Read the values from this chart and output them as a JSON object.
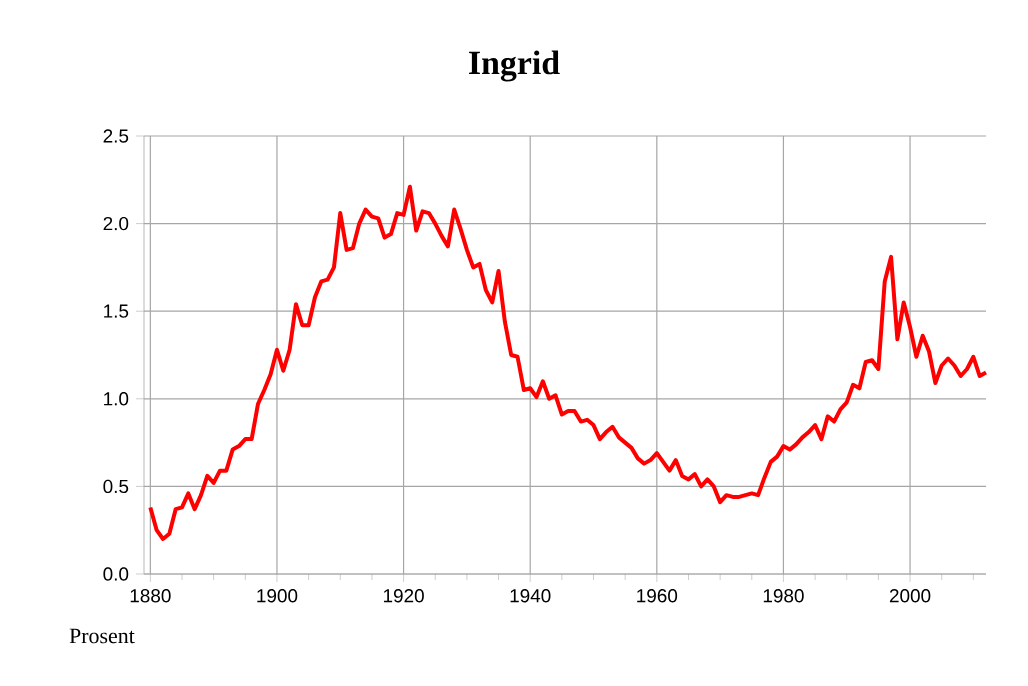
{
  "chart_data": {
    "type": "line",
    "title": "Ingrid",
    "ylabel": "Prosent",
    "x": [
      1880,
      1881,
      1882,
      1883,
      1884,
      1885,
      1886,
      1887,
      1888,
      1889,
      1890,
      1891,
      1892,
      1893,
      1894,
      1895,
      1896,
      1897,
      1898,
      1899,
      1900,
      1901,
      1902,
      1903,
      1904,
      1905,
      1906,
      1907,
      1908,
      1909,
      1910,
      1911,
      1912,
      1913,
      1914,
      1915,
      1916,
      1917,
      1918,
      1919,
      1920,
      1921,
      1922,
      1923,
      1924,
      1925,
      1926,
      1927,
      1928,
      1929,
      1930,
      1931,
      1932,
      1933,
      1934,
      1935,
      1936,
      1937,
      1938,
      1939,
      1940,
      1941,
      1942,
      1943,
      1944,
      1945,
      1946,
      1947,
      1948,
      1949,
      1950,
      1951,
      1952,
      1953,
      1954,
      1955,
      1956,
      1957,
      1958,
      1959,
      1960,
      1961,
      1962,
      1963,
      1964,
      1965,
      1966,
      1967,
      1968,
      1969,
      1970,
      1971,
      1972,
      1973,
      1974,
      1975,
      1976,
      1977,
      1978,
      1979,
      1980,
      1981,
      1982,
      1983,
      1984,
      1985,
      1986,
      1987,
      1988,
      1989,
      1990,
      1991,
      1992,
      1993,
      1994,
      1995,
      1996,
      1997,
      1998,
      1999,
      2000,
      2001,
      2002,
      2003,
      2004,
      2005,
      2006,
      2007,
      2008,
      2009,
      2010,
      2011,
      2012
    ],
    "series": [
      {
        "color": "#ff0000",
        "values": [
          0.38,
          0.25,
          0.2,
          0.23,
          0.37,
          0.38,
          0.46,
          0.37,
          0.45,
          0.56,
          0.52,
          0.59,
          0.59,
          0.71,
          0.73,
          0.77,
          0.77,
          0.97,
          1.05,
          1.14,
          1.28,
          1.16,
          1.28,
          1.54,
          1.42,
          1.42,
          1.58,
          1.67,
          1.68,
          1.75,
          2.06,
          1.85,
          1.86,
          2.0,
          2.08,
          2.04,
          2.03,
          1.92,
          1.94,
          2.06,
          2.05,
          2.21,
          1.96,
          2.07,
          2.06,
          2.0,
          1.93,
          1.87,
          2.08,
          1.97,
          1.85,
          1.75,
          1.77,
          1.62,
          1.55,
          1.73,
          1.44,
          1.25,
          1.24,
          1.05,
          1.06,
          1.01,
          1.1,
          1.0,
          1.02,
          0.91,
          0.93,
          0.93,
          0.87,
          0.88,
          0.85,
          0.77,
          0.81,
          0.84,
          0.78,
          0.75,
          0.72,
          0.66,
          0.63,
          0.65,
          0.69,
          0.64,
          0.59,
          0.65,
          0.56,
          0.54,
          0.57,
          0.5,
          0.54,
          0.5,
          0.41,
          0.45,
          0.44,
          0.44,
          0.45,
          0.46,
          0.45,
          0.55,
          0.64,
          0.67,
          0.73,
          0.71,
          0.74,
          0.78,
          0.81,
          0.85,
          0.77,
          0.9,
          0.87,
          0.94,
          0.98,
          1.08,
          1.06,
          1.21,
          1.22,
          1.17,
          1.67,
          1.81,
          1.34,
          1.55,
          1.41,
          1.24,
          1.36,
          1.27,
          1.09,
          1.19,
          1.23,
          1.19,
          1.13,
          1.17,
          1.24,
          1.13,
          1.15
        ]
      }
    ],
    "xlim": [
      1879,
      2012
    ],
    "ylim": [
      0,
      2.5
    ],
    "xticks": [
      1880,
      {
        "value": 1885,
        "label": null
      },
      {
        "value": 1890,
        "label": null
      },
      {
        "value": 1895,
        "label": null
      },
      1900,
      {
        "value": 1905,
        "label": null
      },
      {
        "value": 1910,
        "label": null
      },
      {
        "value": 1915,
        "label": null
      },
      1920,
      {
        "value": 1925,
        "label": null
      },
      {
        "value": 1930,
        "label": null
      },
      {
        "value": 1935,
        "label": null
      },
      1940,
      {
        "value": 1945,
        "label": null
      },
      {
        "value": 1950,
        "label": null
      },
      {
        "value": 1955,
        "label": null
      },
      1960,
      {
        "value": 1965,
        "label": null
      },
      {
        "value": 1970,
        "label": null
      },
      {
        "value": 1975,
        "label": null
      },
      1980,
      {
        "value": 1985,
        "label": null
      },
      {
        "value": 1990,
        "label": null
      },
      {
        "value": 1995,
        "label": null
      },
      2000,
      {
        "value": 2005,
        "label": null
      },
      {
        "value": 2010,
        "label": null
      }
    ],
    "yticks": [
      {
        "value": 0,
        "label": "0.0"
      },
      0.5,
      {
        "value": 1,
        "label": "1.0"
      },
      1.5,
      {
        "value": 2,
        "label": "2.0"
      },
      2.5
    ],
    "grid": true,
    "marker": "none",
    "line_style": "solid"
  }
}
